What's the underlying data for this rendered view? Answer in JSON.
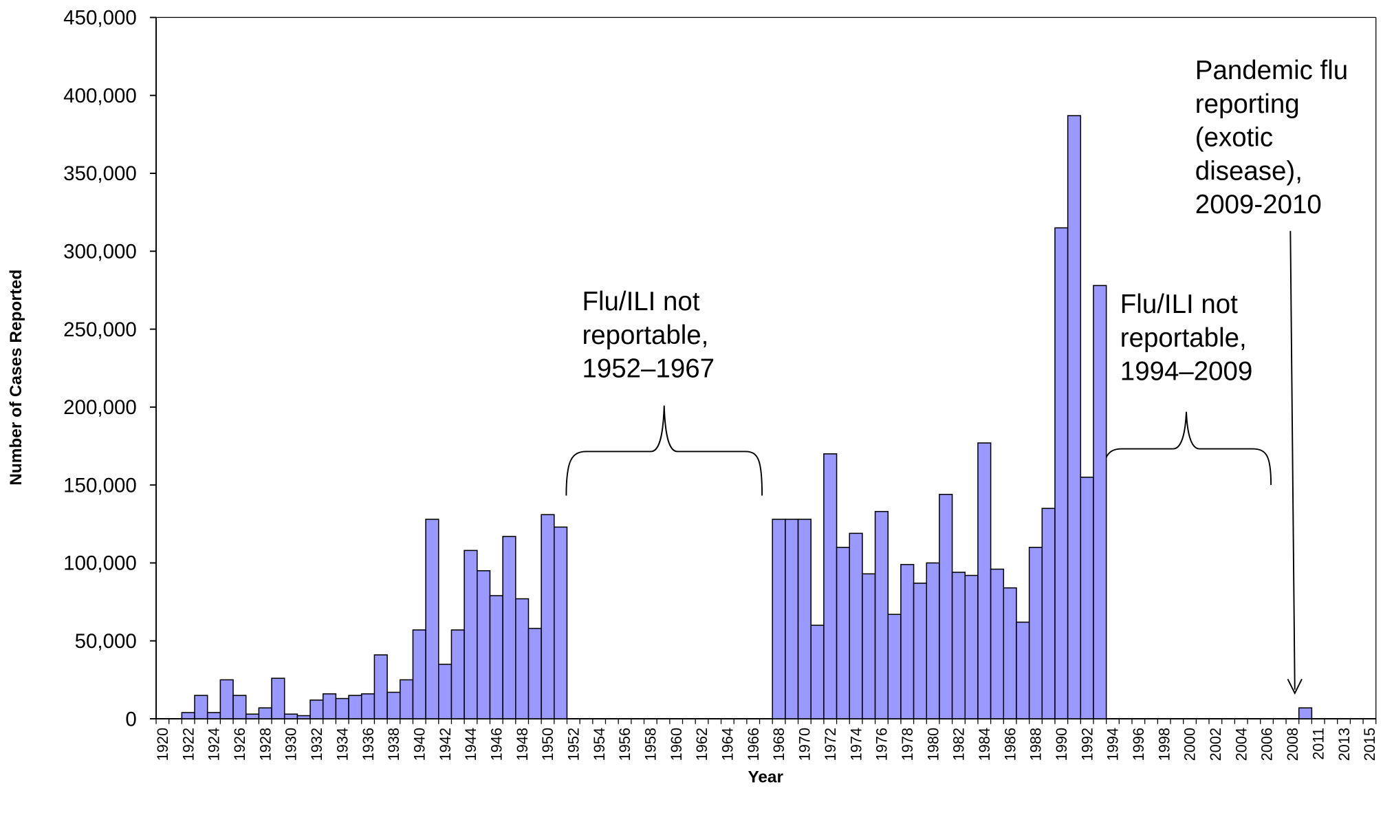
{
  "chart_data": {
    "type": "bar",
    "x_label": "Year",
    "y_label": "Number of Cases Reported",
    "categories": [
      "1920",
      null,
      "1922",
      null,
      "1924",
      null,
      "1926",
      null,
      "1928",
      null,
      "1930",
      null,
      "1932",
      null,
      "1934",
      null,
      "1936",
      null,
      "1938",
      null,
      "1940",
      null,
      "1942",
      null,
      "1944",
      null,
      "1946",
      null,
      "1948",
      null,
      "1950",
      null,
      "1952",
      null,
      "1954",
      null,
      "1956",
      null,
      "1958",
      null,
      "1960",
      null,
      "1962",
      null,
      "1964",
      null,
      "1966",
      null,
      "1968",
      null,
      "1970",
      null,
      "1972",
      null,
      "1974",
      null,
      "1976",
      null,
      "1978",
      null,
      "1980",
      null,
      "1982",
      null,
      "1984",
      null,
      "1986",
      null,
      "1988",
      null,
      "1990",
      null,
      "1992",
      null,
      "1994",
      null,
      "1996",
      null,
      "1998",
      null,
      "2000",
      null,
      "2002",
      null,
      "2004",
      null,
      "2006",
      null,
      "2008",
      null,
      "2011",
      null,
      "2013",
      null,
      "2015"
    ],
    "values": [
      0,
      0,
      4000,
      15000,
      4000,
      25000,
      15000,
      3000,
      7000,
      26000,
      3000,
      2000,
      12000,
      16000,
      13000,
      15000,
      16000,
      41000,
      17000,
      25000,
      57000,
      128000,
      35000,
      57000,
      108000,
      95000,
      79000,
      117000,
      77000,
      58000,
      131000,
      123000,
      null,
      null,
      null,
      null,
      null,
      null,
      null,
      null,
      null,
      null,
      null,
      null,
      null,
      null,
      null,
      null,
      128000,
      128000,
      128000,
      60000,
      170000,
      110000,
      119000,
      93000,
      133000,
      67000,
      99000,
      87000,
      100000,
      144000,
      94000,
      92000,
      177000,
      96000,
      84000,
      62000,
      110000,
      135000,
      315000,
      387000,
      155000,
      278000,
      null,
      null,
      null,
      null,
      null,
      null,
      null,
      null,
      null,
      null,
      null,
      null,
      null,
      null,
      null,
      7000,
      null,
      null,
      null,
      null,
      null
    ],
    "color": "#9999ff",
    "ylim": [
      0,
      450000
    ],
    "yticks": [
      0,
      {
        "value": 50000,
        "label": "50,000"
      },
      {
        "value": 100000,
        "label": "100,000"
      },
      {
        "value": 150000,
        "label": "150,000"
      },
      {
        "value": 200000,
        "label": "200,000"
      },
      {
        "value": 250000,
        "label": "250,000"
      },
      {
        "value": 300000,
        "label": "300,000"
      },
      {
        "value": 350000,
        "label": "350,000"
      },
      {
        "value": 400000,
        "label": "400,000"
      },
      {
        "value": 450000,
        "label": "450,000"
      }
    ],
    "annotations": [
      {
        "lines": [
          "Flu/ILI not",
          "reportable,",
          "1952–1967"
        ]
      },
      {
        "lines": [
          "Flu/ILI not",
          "reportable,",
          "1994–2009"
        ]
      },
      {
        "lines": [
          "Pandemic flu",
          "reporting",
          "(exotic",
          "disease),",
          "2009-2010"
        ]
      }
    ]
  }
}
